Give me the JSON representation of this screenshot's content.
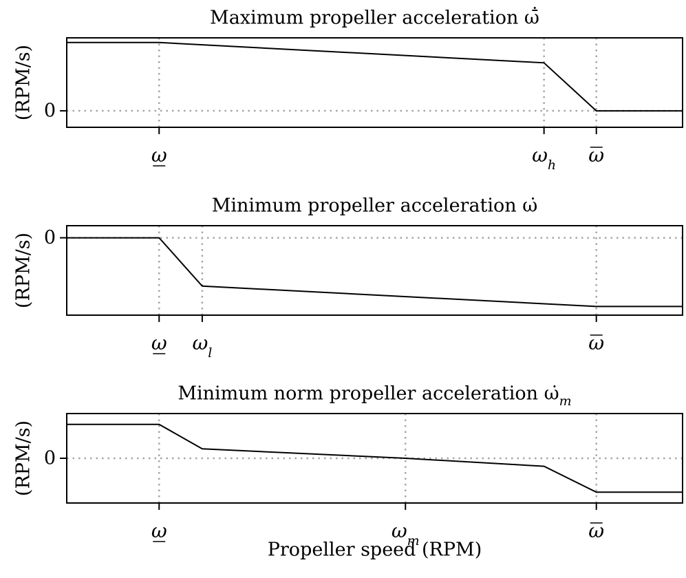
{
  "chart_data": [
    {
      "type": "line",
      "title": "Maximum propeller acceleration ω̄̇",
      "ylabel": "(RPM/s)",
      "xlabel": "",
      "xlim": [
        0,
        1
      ],
      "ylim": [
        -0.35,
        1.55
      ],
      "y_ticks": [
        {
          "value": 0,
          "label": "0"
        }
      ],
      "x_ticks": [
        {
          "value": 0.15,
          "label": "ω",
          "underline": true
        },
        {
          "value": 0.775,
          "label": "ω",
          "subscript": "h"
        },
        {
          "value": 0.86,
          "label": "ω",
          "overline": true
        }
      ],
      "y_gridlines": [
        0
      ],
      "x_gridlines": [
        0.15,
        0.775,
        0.86
      ],
      "x": [
        0,
        0.15,
        0.775,
        0.86,
        1
      ],
      "values": [
        1.45,
        1.45,
        1.02,
        0.0,
        0.0
      ],
      "grid": "dotted"
    },
    {
      "type": "line",
      "title": "Minimum propeller acceleration ω̇",
      "ylabel": "(RPM/s)",
      "xlabel": "",
      "xlim": [
        0,
        1
      ],
      "ylim": [
        -1.6,
        0.25
      ],
      "y_ticks": [
        {
          "value": 0,
          "label": "0"
        }
      ],
      "x_ticks": [
        {
          "value": 0.15,
          "label": "ω",
          "underline": true
        },
        {
          "value": 0.22,
          "label": "ω",
          "subscript": "l"
        },
        {
          "value": 0.86,
          "label": "ω",
          "overline": true
        }
      ],
      "y_gridlines": [
        0
      ],
      "x_gridlines": [
        0.15,
        0.22,
        0.86
      ],
      "x": [
        0,
        0.15,
        0.22,
        0.86,
        1
      ],
      "values": [
        0.0,
        0.0,
        -1.0,
        -1.42,
        -1.42
      ],
      "grid": "dotted"
    },
    {
      "type": "line",
      "title": "Minimum norm propeller acceleration ω̇",
      "title_subscript": "m",
      "ylabel": "(RPM/s)",
      "xlabel": "Propeller speed (RPM)",
      "xlim": [
        0,
        1
      ],
      "ylim": [
        -0.95,
        0.95
      ],
      "y_ticks": [
        {
          "value": 0,
          "label": "0"
        }
      ],
      "x_ticks": [
        {
          "value": 0.15,
          "label": "ω",
          "underline": true
        },
        {
          "value": 0.55,
          "label": "ω",
          "subscript": "m"
        },
        {
          "value": 0.86,
          "label": "ω",
          "overline": true
        }
      ],
      "y_gridlines": [
        0
      ],
      "x_gridlines": [
        0.15,
        0.55,
        0.86
      ],
      "x": [
        0,
        0.15,
        0.22,
        0.55,
        0.775,
        0.86,
        1
      ],
      "values": [
        0.72,
        0.72,
        0.2,
        0.0,
        -0.17,
        -0.72,
        -0.72
      ],
      "grid": "dotted"
    }
  ]
}
